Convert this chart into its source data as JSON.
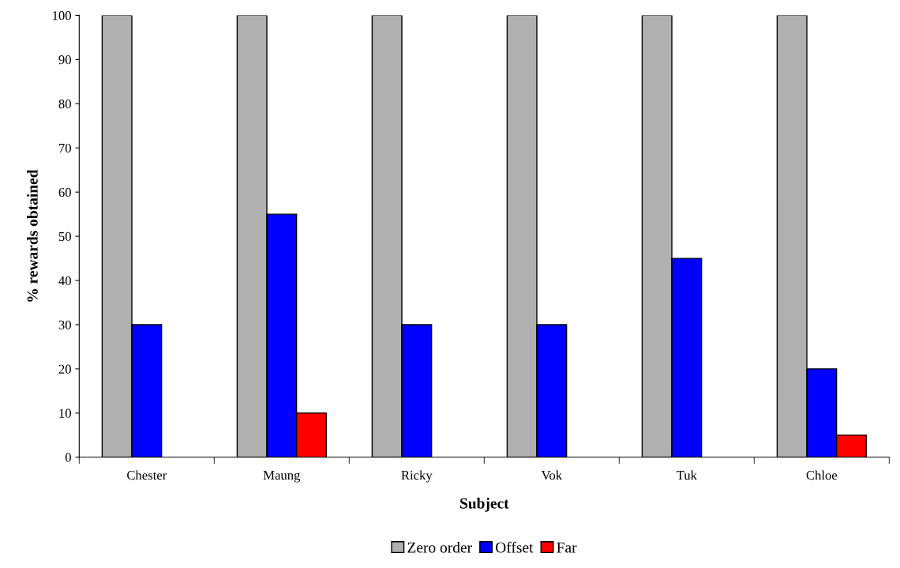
{
  "chart_data": {
    "type": "bar",
    "xlabel": "Subject",
    "ylabel": "% rewards obtained",
    "categories": [
      "Chester",
      "Maung",
      "Ricky",
      "Vok",
      "Tuk",
      "Chloe"
    ],
    "series": [
      {
        "name": "Zero order",
        "color": "#b0b0b0",
        "values": [
          100,
          100,
          100,
          100,
          100,
          100
        ]
      },
      {
        "name": "Offset",
        "color": "#0000ff",
        "values": [
          30,
          55,
          30,
          30,
          45,
          20
        ]
      },
      {
        "name": "Far",
        "color": "#ff0000",
        "values": [
          null,
          10,
          null,
          null,
          null,
          5
        ]
      }
    ],
    "ylim": [
      0,
      100
    ],
    "yticks": [
      0,
      10,
      20,
      30,
      40,
      50,
      60,
      70,
      80,
      90,
      100
    ],
    "grid": false,
    "legend": "bottom"
  }
}
